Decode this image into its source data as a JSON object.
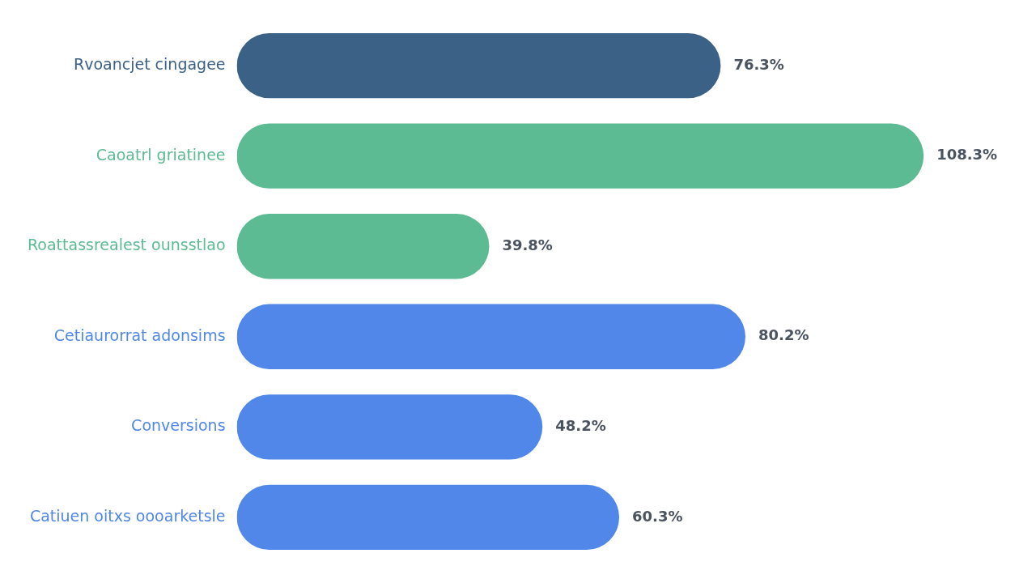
{
  "chart_data": {
    "type": "bar",
    "orientation": "horizontal",
    "categories": [
      "Rvoancjet cingagee",
      "Caoatrl griatinee",
      "Roattassrealest ounsstlao",
      "Cetiaurorrat adonsims",
      "Conversions",
      "Catiuen oitxs oooarketsle"
    ],
    "values": [
      76.3,
      108.3,
      39.8,
      80.2,
      48.2,
      60.3
    ],
    "colors": [
      "#3b6186",
      "#5dbb93",
      "#5dbb93",
      "#5087e8",
      "#5087e8",
      "#5087e8"
    ],
    "value_labels": [
      "76.3%",
      "108.3%",
      "39.8%",
      "80.2%",
      "48.2%",
      "60.3%"
    ]
  }
}
